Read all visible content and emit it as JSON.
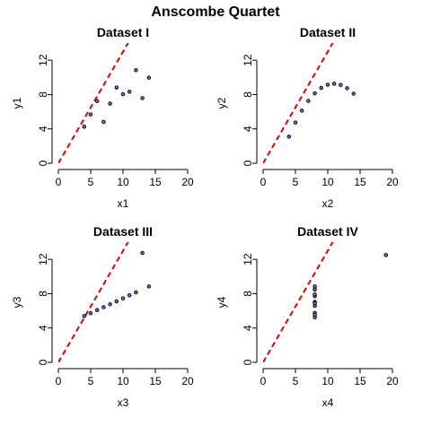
{
  "page": {
    "title": "Anscombe Quartet"
  },
  "chart_data": [
    {
      "type": "scatter",
      "title": "Dataset I",
      "xlabel": "x1",
      "ylabel": "y1",
      "xlim": [
        0,
        20
      ],
      "ylim": [
        0,
        14
      ],
      "xticks": [
        0,
        5,
        10,
        15,
        20
      ],
      "yticks": [
        0,
        4,
        8,
        12
      ],
      "x": [
        10,
        8,
        13,
        9,
        11,
        14,
        6,
        4,
        12,
        7,
        5
      ],
      "y": [
        8.04,
        6.95,
        7.58,
        8.81,
        8.33,
        9.96,
        7.24,
        4.26,
        10.84,
        4.82,
        5.68
      ],
      "reference_line": {
        "slope": 1.3,
        "intercept": 0
      }
    },
    {
      "type": "scatter",
      "title": "Dataset II",
      "xlabel": "x2",
      "ylabel": "y2",
      "xlim": [
        0,
        20
      ],
      "ylim": [
        0,
        14
      ],
      "xticks": [
        0,
        5,
        10,
        15,
        20
      ],
      "yticks": [
        0,
        4,
        8,
        12
      ],
      "x": [
        10,
        8,
        13,
        9,
        11,
        14,
        6,
        4,
        12,
        7,
        5
      ],
      "y": [
        9.14,
        8.14,
        8.74,
        8.77,
        9.26,
        8.1,
        6.13,
        3.1,
        9.13,
        7.26,
        4.74
      ],
      "reference_line": {
        "slope": 1.3,
        "intercept": 0
      }
    },
    {
      "type": "scatter",
      "title": "Dataset III",
      "xlabel": "x3",
      "ylabel": "y3",
      "xlim": [
        0,
        20
      ],
      "ylim": [
        0,
        14
      ],
      "xticks": [
        0,
        5,
        10,
        15,
        20
      ],
      "yticks": [
        0,
        4,
        8,
        12
      ],
      "x": [
        10,
        8,
        13,
        9,
        11,
        14,
        6,
        4,
        12,
        7,
        5
      ],
      "y": [
        7.46,
        6.77,
        12.74,
        7.11,
        7.81,
        8.84,
        6.08,
        5.39,
        8.15,
        6.42,
        5.73
      ],
      "reference_line": {
        "slope": 1.3,
        "intercept": 0
      }
    },
    {
      "type": "scatter",
      "title": "Dataset IV",
      "xlabel": "x4",
      "ylabel": "y4",
      "xlim": [
        0,
        20
      ],
      "ylim": [
        0,
        14
      ],
      "xticks": [
        0,
        5,
        10,
        15,
        20
      ],
      "yticks": [
        0,
        4,
        8,
        12
      ],
      "x": [
        8,
        8,
        8,
        8,
        8,
        8,
        8,
        19,
        8,
        8,
        8
      ],
      "y": [
        6.58,
        5.76,
        7.71,
        8.84,
        8.47,
        7.04,
        5.25,
        12.5,
        5.56,
        7.91,
        6.89
      ],
      "reference_line": {
        "slope": 1.3,
        "intercept": 0
      }
    }
  ],
  "colors": {
    "point_fill": "#7070d0",
    "point_stroke": "#000000",
    "reference_line": "#e00000",
    "axis": "#000000",
    "text": "#000000"
  }
}
